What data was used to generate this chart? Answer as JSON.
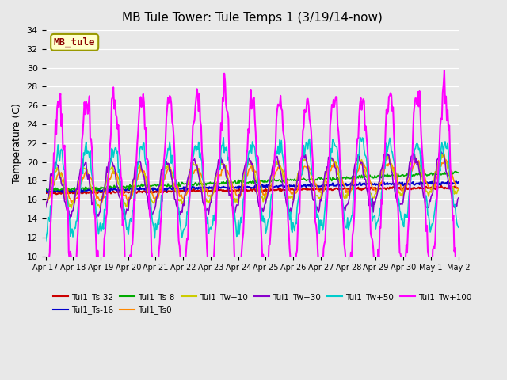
{
  "title": "MB Tule Tower: Tule Temps 1 (3/19/14-now)",
  "ylabel": "Temperature (C)",
  "bg_color": "#e8e8e8",
  "plot_bg_color": "#e8e8e8",
  "ylim": [
    10,
    34
  ],
  "yticks": [
    10,
    12,
    14,
    16,
    18,
    20,
    22,
    24,
    26,
    28,
    30,
    32,
    34
  ],
  "x_labels": [
    "Apr 17",
    "Apr 18",
    "Apr 19",
    "Apr 20",
    "Apr 21",
    "Apr 22",
    "Apr 23",
    "Apr 24",
    "Apr 25",
    "Apr 26",
    "Apr 27",
    "Apr 28",
    "Apr 29",
    "Apr 30",
    "May 1",
    "May 2"
  ],
  "xtick_positions": [
    0,
    1,
    2,
    3,
    4,
    5,
    6,
    7,
    8,
    9,
    10,
    11,
    12,
    13,
    14,
    15
  ],
  "series": {
    "Tul1_Ts-32": {
      "color": "#cc0000",
      "lw": 1.5
    },
    "Tul1_Ts-16": {
      "color": "#0000cc",
      "lw": 1.5
    },
    "Tul1_Ts-8": {
      "color": "#00aa00",
      "lw": 1.2
    },
    "Tul1_Ts0": {
      "color": "#ff8800",
      "lw": 1.2
    },
    "Tul1_Tw+10": {
      "color": "#cccc00",
      "lw": 1.2
    },
    "Tul1_Tw+30": {
      "color": "#8800cc",
      "lw": 1.2
    },
    "Tul1_Tw+50": {
      "color": "#00cccc",
      "lw": 1.2
    },
    "Tul1_Tw+100": {
      "color": "#ff00ff",
      "lw": 1.5
    }
  },
  "legend_box_color": "#ffffcc",
  "legend_box_edge": "#999900",
  "legend_text": "MB_tule",
  "n_points": 500,
  "xlim": [
    0,
    15
  ]
}
